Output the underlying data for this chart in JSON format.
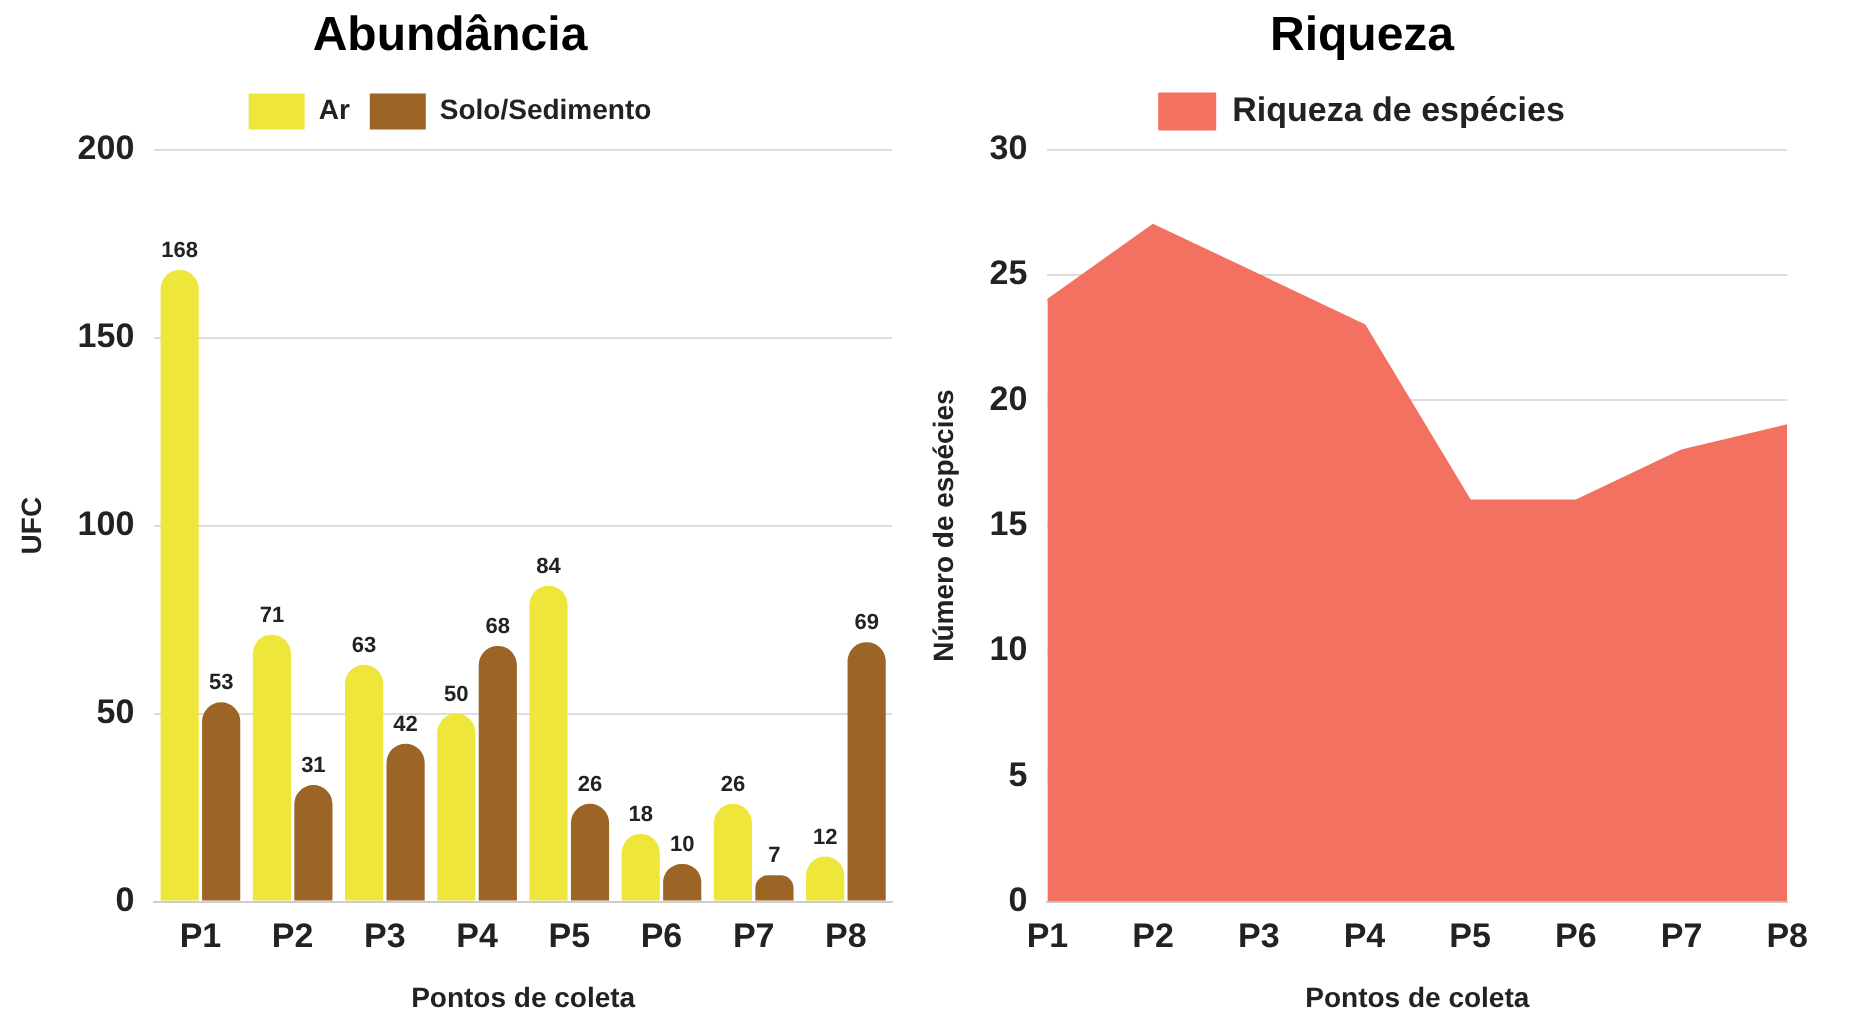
{
  "chart_data": [
    {
      "type": "bar",
      "title": "Abundância",
      "xlabel": "Pontos de coleta",
      "ylabel": "UFC",
      "categories": [
        "P1",
        "P2",
        "P3",
        "P4",
        "P5",
        "P6",
        "P7",
        "P8"
      ],
      "series": [
        {
          "name": "Ar",
          "color": "#efe63c",
          "values": [
            168,
            71,
            63,
            50,
            84,
            18,
            26,
            12
          ]
        },
        {
          "name": "Solo/Sedimento",
          "color": "#9c6526",
          "values": [
            53,
            31,
            42,
            68,
            26,
            10,
            7,
            69
          ]
        }
      ],
      "ylim": [
        0,
        200
      ],
      "yticks": [
        0,
        50,
        100,
        150,
        200
      ],
      "grid": "y",
      "legend": "top",
      "data_labels": true
    },
    {
      "type": "area",
      "title": "Riqueza",
      "xlabel": "Pontos de coleta",
      "ylabel": "Número de espécies",
      "categories": [
        "P1",
        "P2",
        "P3",
        "P4",
        "P5",
        "P6",
        "P7",
        "P8"
      ],
      "series": [
        {
          "name": "Riqueza de espécies",
          "color": "#f27160",
          "values": [
            24,
            27,
            25,
            23,
            16,
            16,
            18,
            19
          ]
        }
      ],
      "ylim": [
        0,
        30
      ],
      "yticks": [
        0,
        5,
        10,
        15,
        20,
        25,
        30
      ],
      "grid": "y",
      "legend": "top"
    }
  ]
}
